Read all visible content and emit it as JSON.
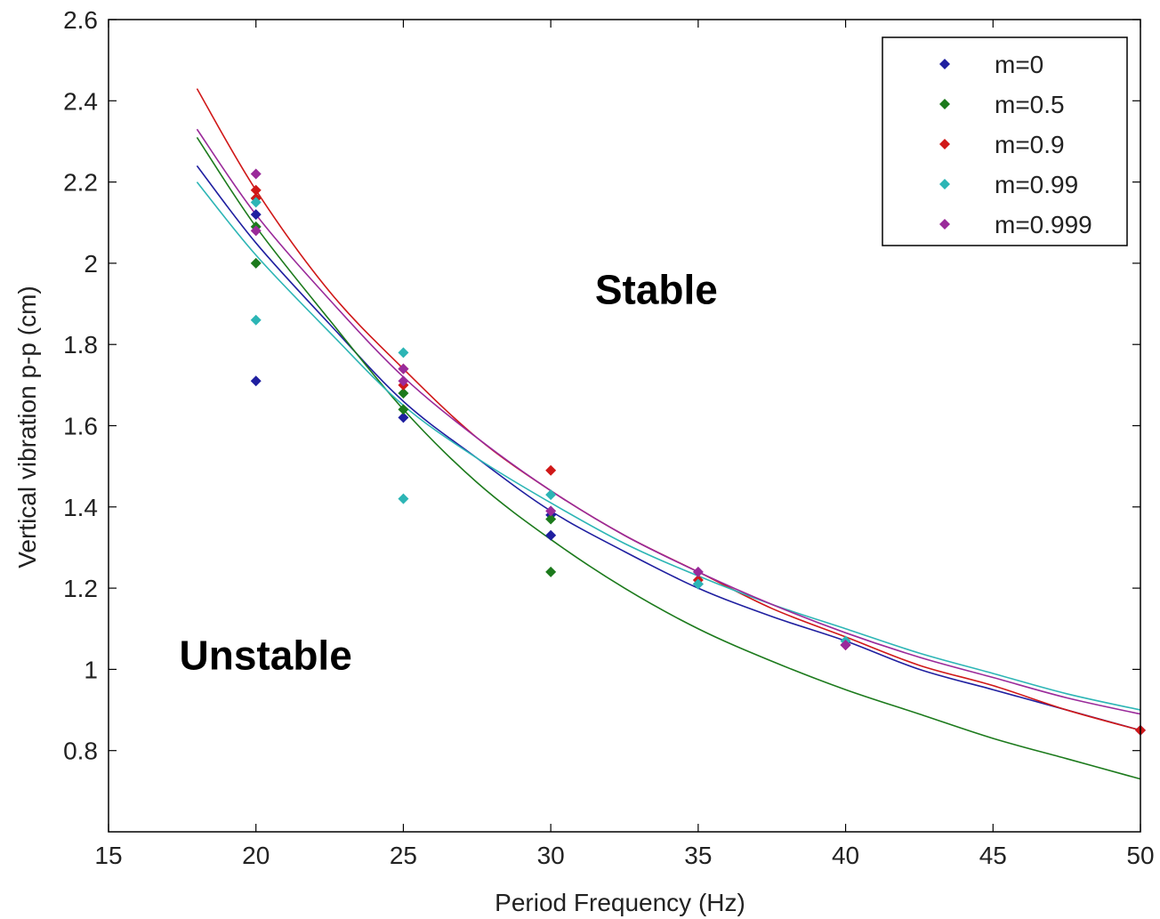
{
  "chart_data": {
    "type": "scatter",
    "title": "",
    "xlabel": "Period Frequency (Hz)",
    "ylabel": "Vertical vibration p-p (cm)",
    "xlim": [
      15,
      50
    ],
    "ylim": [
      0.6,
      2.6
    ],
    "xticks": [
      15,
      20,
      25,
      30,
      35,
      40,
      45,
      50
    ],
    "yticks": [
      0.8,
      1,
      1.2,
      1.4,
      1.6,
      1.8,
      2,
      2.2,
      2.4,
      2.6
    ],
    "xtick_labels": [
      "15",
      "20",
      "25",
      "30",
      "35",
      "40",
      "45",
      "50"
    ],
    "ytick_labels": [
      "0.8",
      "1",
      "1.2",
      "1.4",
      "1.6",
      "1.8",
      "2",
      "2.2",
      "2.4",
      "2.6"
    ],
    "grid": false,
    "legend_position": "top-right",
    "annotations": [
      {
        "text": "Stable",
        "x": 31.5,
        "y": 1.9
      },
      {
        "text": "Unstable",
        "x": 17.4,
        "y": 1.0
      }
    ],
    "series": [
      {
        "name": "m=0",
        "color": "#1f1fa0",
        "points": [
          [
            20,
            2.12
          ],
          [
            20,
            1.71
          ],
          [
            25,
            1.62
          ],
          [
            30,
            1.33
          ],
          [
            30,
            1.38
          ],
          [
            35,
            1.21
          ],
          [
            40,
            1.06
          ],
          [
            50,
            0.85
          ]
        ],
        "fit": [
          [
            18,
            2.24
          ],
          [
            20,
            2.05
          ],
          [
            22.5,
            1.85
          ],
          [
            25,
            1.66
          ],
          [
            27.5,
            1.52
          ],
          [
            30,
            1.39
          ],
          [
            32.5,
            1.29
          ],
          [
            35,
            1.2
          ],
          [
            37.5,
            1.13
          ],
          [
            40,
            1.07
          ],
          [
            42.5,
            1.0
          ],
          [
            45,
            0.95
          ],
          [
            47.5,
            0.9
          ],
          [
            50,
            0.85
          ]
        ]
      },
      {
        "name": "m=0.5",
        "color": "#1c7a1c",
        "points": [
          [
            20,
            2.16
          ],
          [
            20,
            2.0
          ],
          [
            20,
            2.09
          ],
          [
            25,
            1.64
          ],
          [
            25,
            1.68
          ],
          [
            30,
            1.24
          ],
          [
            30,
            1.37
          ]
        ],
        "fit": [
          [
            18,
            2.31
          ],
          [
            20,
            2.09
          ],
          [
            22.5,
            1.86
          ],
          [
            25,
            1.64
          ],
          [
            27.5,
            1.46
          ],
          [
            30,
            1.32
          ],
          [
            32.5,
            1.2
          ],
          [
            35,
            1.1
          ],
          [
            37.5,
            1.02
          ],
          [
            40,
            0.95
          ],
          [
            42.5,
            0.89
          ],
          [
            45,
            0.83
          ],
          [
            47.5,
            0.78
          ],
          [
            50,
            0.73
          ]
        ]
      },
      {
        "name": "m=0.9",
        "color": "#d01818",
        "points": [
          [
            20,
            2.18
          ],
          [
            20,
            2.16
          ],
          [
            25,
            1.74
          ],
          [
            25,
            1.7
          ],
          [
            30,
            1.49
          ],
          [
            35,
            1.22
          ],
          [
            40,
            1.06
          ],
          [
            50,
            0.85
          ]
        ],
        "fit": [
          [
            18,
            2.43
          ],
          [
            20,
            2.18
          ],
          [
            22.5,
            1.93
          ],
          [
            25,
            1.74
          ],
          [
            27.5,
            1.57
          ],
          [
            30,
            1.44
          ],
          [
            32.5,
            1.33
          ],
          [
            35,
            1.24
          ],
          [
            37.5,
            1.15
          ],
          [
            40,
            1.08
          ],
          [
            42.5,
            1.01
          ],
          [
            45,
            0.96
          ],
          [
            47.5,
            0.9
          ],
          [
            50,
            0.85
          ]
        ]
      },
      {
        "name": "m=0.99",
        "color": "#2cb5b5",
        "points": [
          [
            20,
            2.15
          ],
          [
            20,
            1.86
          ],
          [
            25,
            1.78
          ],
          [
            25,
            1.42
          ],
          [
            30,
            1.43
          ],
          [
            35,
            1.21
          ],
          [
            40,
            1.07
          ]
        ],
        "fit": [
          [
            18,
            2.2
          ],
          [
            20,
            2.02
          ],
          [
            22.5,
            1.83
          ],
          [
            25,
            1.65
          ],
          [
            27.5,
            1.52
          ],
          [
            30,
            1.41
          ],
          [
            32.5,
            1.31
          ],
          [
            35,
            1.23
          ],
          [
            37.5,
            1.16
          ],
          [
            40,
            1.1
          ],
          [
            42.5,
            1.04
          ],
          [
            45,
            0.99
          ],
          [
            47.5,
            0.94
          ],
          [
            50,
            0.9
          ]
        ]
      },
      {
        "name": "m=0.999",
        "color": "#9a2a9a",
        "points": [
          [
            20,
            2.22
          ],
          [
            20,
            2.08
          ],
          [
            25,
            1.74
          ],
          [
            25,
            1.71
          ],
          [
            30,
            1.39
          ],
          [
            35,
            1.24
          ],
          [
            40,
            1.06
          ]
        ],
        "fit": [
          [
            18,
            2.33
          ],
          [
            20,
            2.12
          ],
          [
            22.5,
            1.91
          ],
          [
            25,
            1.72
          ],
          [
            27.5,
            1.57
          ],
          [
            30,
            1.44
          ],
          [
            32.5,
            1.33
          ],
          [
            35,
            1.24
          ],
          [
            37.5,
            1.16
          ],
          [
            40,
            1.09
          ],
          [
            42.5,
            1.03
          ],
          [
            45,
            0.98
          ],
          [
            47.5,
            0.93
          ],
          [
            50,
            0.89
          ]
        ]
      }
    ]
  }
}
